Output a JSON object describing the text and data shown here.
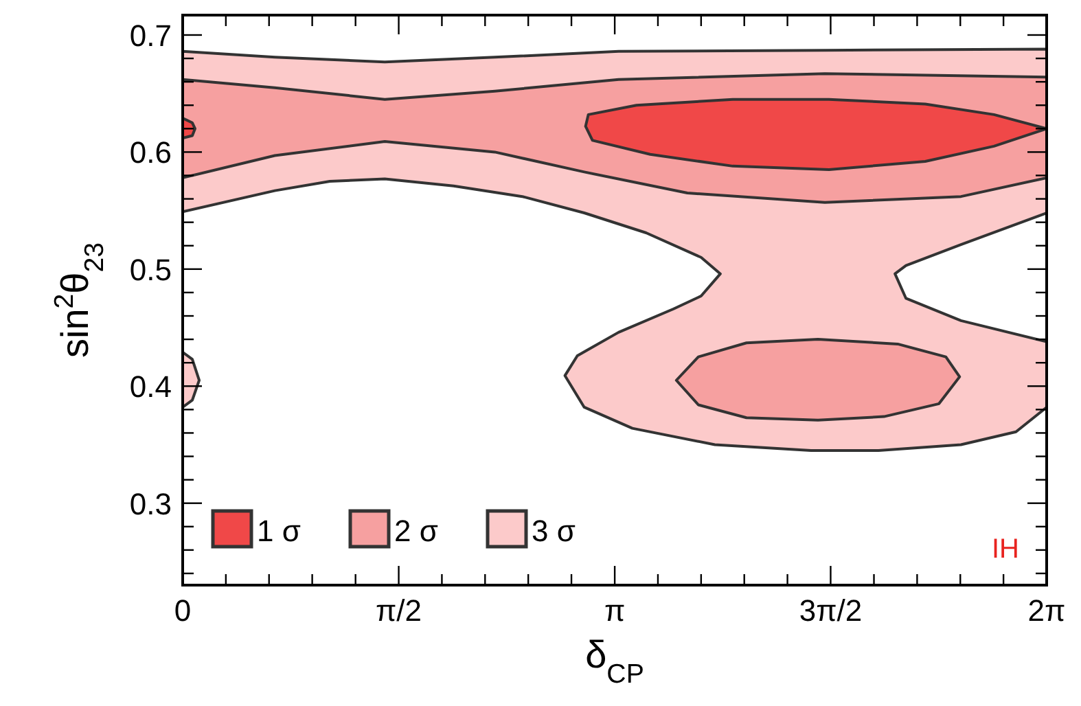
{
  "chart_data": {
    "type": "area",
    "xlabel": "δ$_{CP}$",
    "ylabel": "sin$^{2}$θ$_{23}$",
    "annotations": [
      "IH"
    ],
    "legend": "bottom left",
    "grid": false,
    "xlim": [
      0,
      6.283
    ],
    "ylim": [
      0.23,
      0.717
    ],
    "xticks": [
      {
        "value": 0,
        "label": "0"
      },
      {
        "value": 0.314,
        "label": null
      },
      {
        "value": 0.628,
        "label": null
      },
      {
        "value": 0.942,
        "label": null
      },
      {
        "value": 1.257,
        "label": null
      },
      {
        "value": 1.571,
        "label": "π/2"
      },
      {
        "value": 1.885,
        "label": null
      },
      {
        "value": 2.199,
        "label": null
      },
      {
        "value": 2.513,
        "label": null
      },
      {
        "value": 2.827,
        "label": null
      },
      {
        "value": 3.142,
        "label": "π"
      },
      {
        "value": 3.456,
        "label": null
      },
      {
        "value": 3.77,
        "label": null
      },
      {
        "value": 4.084,
        "label": null
      },
      {
        "value": 4.398,
        "label": null
      },
      {
        "value": 4.712,
        "label": "3π/2"
      },
      {
        "value": 5.027,
        "label": null
      },
      {
        "value": 5.341,
        "label": null
      },
      {
        "value": 5.655,
        "label": null
      },
      {
        "value": 5.969,
        "label": null
      },
      {
        "value": 6.283,
        "label": "2π"
      }
    ],
    "yticks": [
      {
        "value": 0.24,
        "label": null
      },
      {
        "value": 0.26,
        "label": null
      },
      {
        "value": 0.28,
        "label": null
      },
      {
        "value": 0.3,
        "label": "0.3"
      },
      {
        "value": 0.32,
        "label": null
      },
      {
        "value": 0.34,
        "label": null
      },
      {
        "value": 0.36,
        "label": null
      },
      {
        "value": 0.38,
        "label": null
      },
      {
        "value": 0.4,
        "label": "0.4"
      },
      {
        "value": 0.42,
        "label": null
      },
      {
        "value": 0.44,
        "label": null
      },
      {
        "value": 0.46,
        "label": null
      },
      {
        "value": 0.48,
        "label": null
      },
      {
        "value": 0.5,
        "label": "0.5"
      },
      {
        "value": 0.52,
        "label": null
      },
      {
        "value": 0.54,
        "label": null
      },
      {
        "value": 0.56,
        "label": null
      },
      {
        "value": 0.58,
        "label": null
      },
      {
        "value": 0.6,
        "label": "0.6"
      },
      {
        "value": 0.62,
        "label": null
      },
      {
        "value": 0.64,
        "label": null
      },
      {
        "value": 0.66,
        "label": null
      },
      {
        "value": 0.68,
        "label": null
      },
      {
        "value": 0.7,
        "label": "0.7"
      }
    ],
    "series": [
      {
        "name": "3 σ",
        "color": "#fccaca",
        "x": [
          0,
          0.67,
          1.47,
          2.27,
          3.17,
          4.67,
          6.283,
          6.283,
          5.66,
          5.26,
          5.18,
          5.26,
          5.66,
          6.283,
          6.283,
          6.06,
          5.66,
          5.06,
          4.57,
          3.87,
          3.27,
          2.92,
          2.78,
          2.87,
          3.17,
          3.57,
          3.77,
          3.91,
          3.77,
          3.37,
          2.92,
          2.47,
          1.97,
          1.47,
          1.07,
          0.67,
          0,
          null,
          0,
          0.07,
          0.12,
          0.07,
          0
        ],
        "values": [
          0.686,
          0.681,
          0.677,
          0.681,
          0.686,
          0.687,
          0.688,
          0.548,
          0.521,
          0.503,
          0.496,
          0.475,
          0.456,
          0.438,
          0.382,
          0.361,
          0.35,
          0.345,
          0.345,
          0.35,
          0.364,
          0.382,
          0.409,
          0.426,
          0.446,
          0.466,
          0.477,
          0.496,
          0.51,
          0.531,
          0.548,
          0.562,
          0.571,
          0.577,
          0.575,
          0.567,
          0.549,
          null,
          0.429,
          0.423,
          0.405,
          0.388,
          0.382
        ]
      },
      {
        "name": "2 σ",
        "color": "#f6a0a0",
        "x": [
          0,
          0.67,
          1.47,
          2.27,
          3.17,
          4.67,
          6.283,
          6.283,
          5.66,
          4.67,
          3.67,
          2.92,
          2.27,
          1.47,
          0.67,
          0,
          null,
          3.59,
          3.75,
          4.1,
          4.62,
          5.2,
          5.55,
          5.65,
          5.5,
          5.1,
          4.62,
          4.1,
          3.75
        ],
        "values": [
          0.662,
          0.655,
          0.645,
          0.652,
          0.662,
          0.667,
          0.664,
          0.578,
          0.562,
          0.557,
          0.565,
          0.583,
          0.6,
          0.609,
          0.597,
          0.578,
          null,
          0.405,
          0.425,
          0.437,
          0.44,
          0.436,
          0.425,
          0.408,
          0.385,
          0.374,
          0.371,
          0.373,
          0.384
        ]
      },
      {
        "name": "1 σ",
        "color": "#f04848",
        "x": [
          2.93,
          2.95,
          3.3,
          4.0,
          4.7,
          5.4,
          5.9,
          6.283,
          5.9,
          5.4,
          4.7,
          4.0,
          3.4,
          2.98,
          null,
          0,
          0.07,
          0.09,
          0.07,
          0
        ],
        "values": [
          0.622,
          0.632,
          0.64,
          0.645,
          0.645,
          0.641,
          0.632,
          0.62,
          0.605,
          0.592,
          0.585,
          0.588,
          0.598,
          0.61,
          null,
          0.629,
          0.625,
          0.62,
          0.614,
          0.612
        ]
      }
    ]
  }
}
